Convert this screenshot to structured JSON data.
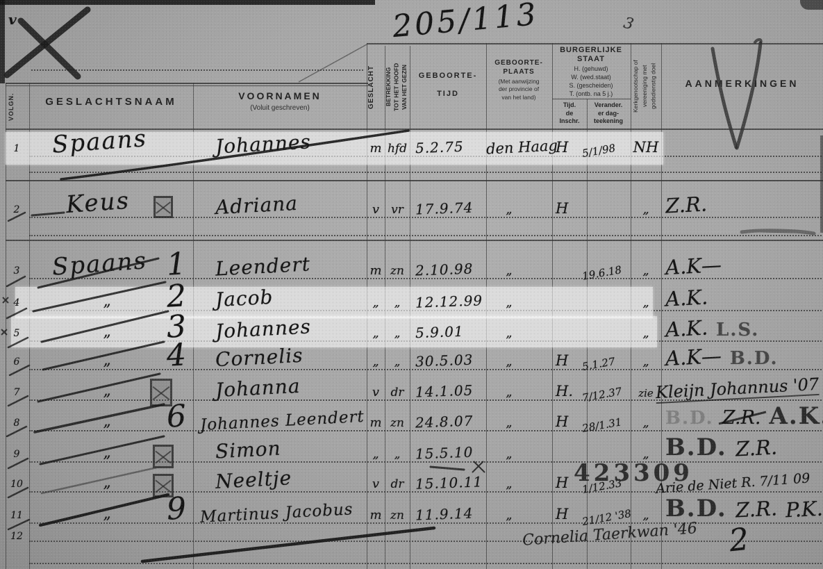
{
  "document": {
    "register_number": "205/113",
    "corner_check": "v",
    "margin_squiggle": "3",
    "bottom_flourish": "2"
  },
  "header": {
    "volgnr": "VOLGN.",
    "geslachtsnaam": "GESLACHTSNAAM",
    "voornamen": "VOORNAMEN",
    "voornamen_sub": "(Voluit geschreven)",
    "geslacht": "GESLACHT",
    "betrekking": "BETREKKING\nTOT HET HOOFD\nVAN HET GEZIN",
    "geboortetijd": "GEBOORTE-\nTIJD",
    "geboorteplaats": "GEBOORTE-\nPLAATS",
    "geboorteplaats_sub": "(Met aanwijzing\nder provincie of\nvan het land)",
    "burgerlijke_staat": "BURGERLIJKE\nSTAAT",
    "staat_lines": [
      "H. (gehuwd)",
      "W. (wed.staat)",
      "S. (gescheiden)",
      "T. (ontb. na 5 j.)"
    ],
    "staat_col1": "Tijd.\nde\nInschr.",
    "staat_col2": "Verander.\ner dag-\nteekening",
    "kerkgenootschap": "Kerkgenootschap of\nvereeniging met\ngodsdienstig doel",
    "aanmerkingen": "AANMERKINGEN"
  },
  "rows": [
    {
      "nr": "1",
      "surname": "Spaans",
      "mark": "",
      "firstnames": "Johannes",
      "sex": "m",
      "relation": "hfd",
      "birth_date": "5.2.75",
      "birth_place": "den Haag",
      "staat": "H",
      "staat_date": "5/1/98",
      "kerk": "NH",
      "remark_segments": [],
      "highlight": true
    },
    {
      "nr": "2",
      "surname": "Keus",
      "mark": "box",
      "firstnames": "Adriana",
      "sex": "v",
      "relation": "vr",
      "birth_date": "17.9.74",
      "birth_place": "„",
      "staat": "H",
      "staat_date": "",
      "kerk": "„",
      "remark_segments": [
        {
          "t": "Z.R.",
          "s": "hand"
        }
      ]
    },
    {
      "nr": "3",
      "surname": "Spaans",
      "mark": "1",
      "firstnames": "Leendert",
      "sex": "m",
      "relation": "zn",
      "birth_date": "2.10.98",
      "birth_place": "„",
      "staat": "",
      "staat_date": "19.6.18",
      "kerk": "„",
      "remark_segments": [
        {
          "t": "A.K—",
          "s": "hand"
        }
      ]
    },
    {
      "nr": "4",
      "surname": "„",
      "mark": "2",
      "firstnames": "Jacob",
      "sex": "„",
      "relation": "„",
      "birth_date": "12.12.99",
      "birth_place": "„",
      "staat": "",
      "staat_date": "",
      "kerk": "„",
      "remark_segments": [
        {
          "t": "A.K.",
          "s": "hand"
        }
      ],
      "highlight": true
    },
    {
      "nr": "5",
      "surname": "„",
      "mark": "3",
      "firstnames": "Johannes",
      "sex": "„",
      "relation": "„",
      "birth_date": "5.9.01",
      "birth_place": "„",
      "staat": "",
      "staat_date": "",
      "kerk": "„",
      "remark_segments": [
        {
          "t": "A.K.",
          "s": "hand"
        },
        {
          "t": "L.S.",
          "s": "stamp"
        }
      ],
      "highlight": true
    },
    {
      "nr": "6",
      "surname": "„",
      "mark": "4",
      "firstnames": "Cornelis",
      "sex": "„",
      "relation": "„",
      "birth_date": "30.5.03",
      "birth_place": "„",
      "staat": "H",
      "staat_date": "5.1.27",
      "kerk": "„",
      "remark_segments": [
        {
          "t": "A.K—",
          "s": "hand"
        },
        {
          "t": "B.D.",
          "s": "stamp"
        }
      ]
    },
    {
      "nr": "7",
      "surname": "„",
      "mark": "box",
      "firstnames": "Johanna",
      "sex": "v",
      "relation": "dr",
      "birth_date": "14.1.05",
      "birth_place": "„",
      "staat": "H.",
      "staat_date": "7/12.37",
      "kerk": "zie",
      "remark_segments": [
        {
          "t": "Kleijn Johannus '07",
          "s": "hand-long"
        }
      ]
    },
    {
      "nr": "8",
      "surname": "„",
      "mark": "6",
      "firstnames": "Johannes Leendert",
      "sex": "m",
      "relation": "zn",
      "birth_date": "24.8.07",
      "birth_place": "„",
      "staat": "H",
      "staat_date": "28/1.31",
      "kerk": "„",
      "remark_segments": [
        {
          "t": "B.D.",
          "s": "stamp-faint"
        },
        {
          "t": "Z.R.",
          "s": "hand-crossed"
        },
        {
          "t": "A.K.",
          "s": "stamp-big"
        }
      ]
    },
    {
      "nr": "9",
      "surname": "„",
      "mark": "box",
      "firstnames": "Simon",
      "sex": "„",
      "relation": "„",
      "birth_date": "15.5.10",
      "birth_place": "„",
      "staat": "",
      "staat_date": "",
      "kerk": "„",
      "remark_segments": [
        {
          "t": "B.D.",
          "s": "stamp-big"
        },
        {
          "t": "Z.R.",
          "s": "hand"
        }
      ],
      "date_mark": "x"
    },
    {
      "nr": "10",
      "surname": "„",
      "mark": "box",
      "firstnames": "Neeltje",
      "sex": "v",
      "relation": "dr",
      "birth_date": "15.10.11",
      "birth_place": "„",
      "staat": "H",
      "staat_date": "1/12.33",
      "kerk": "",
      "remark_segments": [
        {
          "t": "Arie de Niet R. 7/11 09",
          "s": "hand-small"
        }
      ],
      "stamp_number": "423309"
    },
    {
      "nr": "11",
      "surname": "„",
      "mark": "9",
      "firstnames": "Martinus Jacobus",
      "sex": "m",
      "relation": "zn",
      "birth_date": "11.9.14",
      "birth_place": "„",
      "staat": "H",
      "staat_date": "21/12 '38",
      "kerk": "„",
      "remark_segments": [
        {
          "t": "B.D.",
          "s": "stamp-big"
        },
        {
          "t": "Z.R.",
          "s": "hand"
        },
        {
          "t": "P.K.",
          "s": "hand"
        }
      ],
      "remark_below": "Cornelia Taerkwan '46"
    },
    {
      "nr": "12",
      "surname": "",
      "mark": "",
      "firstnames": "",
      "sex": "",
      "relation": "",
      "birth_date": "",
      "birth_place": "",
      "staat": "",
      "staat_date": "",
      "kerk": "",
      "remark_segments": []
    }
  ]
}
